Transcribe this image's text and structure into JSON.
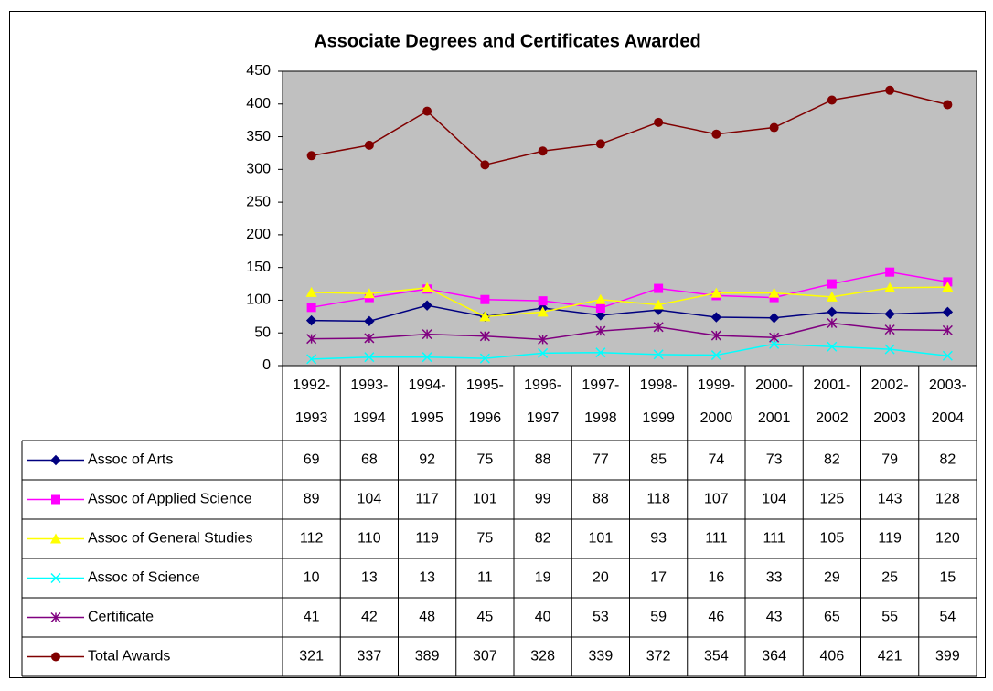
{
  "chart_data": {
    "type": "line",
    "title": "Associate Degrees and Certificates Awarded",
    "categories": [
      "1992-1993",
      "1993-1994",
      "1994-1995",
      "1995-1996",
      "1996-1997",
      "1997-1998",
      "1998-1999",
      "1999-2000",
      "2000-2001",
      "2001-2002",
      "2002-2003",
      "2003-2004"
    ],
    "ylim": [
      0,
      450
    ],
    "yticks": [
      0,
      50,
      100,
      150,
      200,
      250,
      300,
      350,
      400,
      450
    ],
    "grid": false,
    "plot_background": "#c0c0c0",
    "series": [
      {
        "name": "Assoc of Arts",
        "color": "#000080",
        "marker": "diamond",
        "values": [
          69,
          68,
          92,
          75,
          88,
          77,
          85,
          74,
          73,
          82,
          79,
          82
        ]
      },
      {
        "name": "Assoc of Applied Science",
        "color": "#ff00ff",
        "marker": "square",
        "values": [
          89,
          104,
          117,
          101,
          99,
          88,
          118,
          107,
          104,
          125,
          143,
          128
        ]
      },
      {
        "name": "Assoc of General Studies",
        "color": "#ffff00",
        "marker": "triangle",
        "values": [
          112,
          110,
          119,
          75,
          82,
          101,
          93,
          111,
          111,
          105,
          119,
          120
        ]
      },
      {
        "name": "Assoc of Science",
        "color": "#00ffff",
        "marker": "x",
        "values": [
          10,
          13,
          13,
          11,
          19,
          20,
          17,
          16,
          33,
          29,
          25,
          15
        ]
      },
      {
        "name": "Certificate",
        "color": "#800080",
        "marker": "star",
        "values": [
          41,
          42,
          48,
          45,
          40,
          53,
          59,
          46,
          43,
          65,
          55,
          54
        ]
      },
      {
        "name": "Total Awards",
        "color": "#800000",
        "marker": "circle",
        "values": [
          321,
          337,
          389,
          307,
          328,
          339,
          372,
          354,
          364,
          406,
          421,
          399
        ]
      }
    ]
  }
}
